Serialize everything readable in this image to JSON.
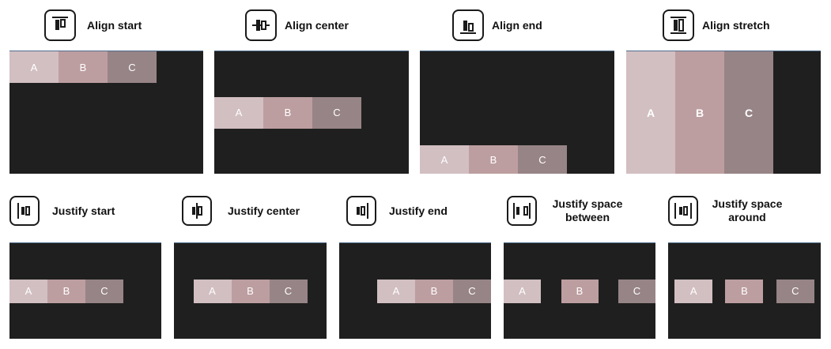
{
  "align": [
    {
      "key": "align-start",
      "label": "Align start",
      "icon": "align-start-icon",
      "items": [
        "A",
        "B",
        "C"
      ]
    },
    {
      "key": "align-center",
      "label": "Align center",
      "icon": "align-center-icon",
      "items": [
        "A",
        "B",
        "C"
      ]
    },
    {
      "key": "align-end",
      "label": "Align end",
      "icon": "align-end-icon",
      "items": [
        "A",
        "B",
        "C"
      ]
    },
    {
      "key": "align-stretch",
      "label": "Align stretch",
      "icon": "align-stretch-icon",
      "items": [
        "A",
        "B",
        "C"
      ]
    }
  ],
  "justify": [
    {
      "key": "justify-start",
      "label": "Justify start",
      "icon": "justify-start-icon",
      "items": [
        "A",
        "B",
        "C"
      ]
    },
    {
      "key": "justify-center",
      "label": "Justify center",
      "icon": "justify-center-icon",
      "items": [
        "A",
        "B",
        "C"
      ]
    },
    {
      "key": "justify-end",
      "label": "Justify end",
      "icon": "justify-end-icon",
      "items": [
        "A",
        "B",
        "C"
      ]
    },
    {
      "key": "justify-space-between",
      "label": "Justify space between",
      "icon": "justify-space-between-icon",
      "items": [
        "A",
        "B",
        "C"
      ]
    },
    {
      "key": "justify-space-around",
      "label": "Justify space around",
      "icon": "justify-space-around-icon",
      "items": [
        "A",
        "B",
        "C"
      ]
    }
  ],
  "colors": {
    "panel": "#1f1f1f",
    "a": "#d2bfc2",
    "b": "#bd9ea0",
    "c": "#978486"
  }
}
